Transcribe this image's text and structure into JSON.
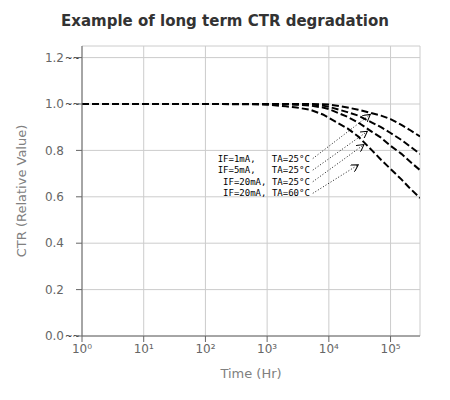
{
  "chart_data": {
    "type": "line",
    "title": "Example of long term CTR degradation",
    "xlabel": "Time (Hr)",
    "ylabel": "CTR (Relative Value)",
    "log": "x",
    "xlim": [
      1,
      300000
    ],
    "ylim": [
      0.0,
      1.25
    ],
    "xticks": [
      {
        "value": 1,
        "label": "10⁰"
      },
      {
        "value": 10,
        "label": "10¹"
      },
      {
        "value": 100,
        "label": "10²"
      },
      {
        "value": 1000,
        "label": "10³"
      },
      {
        "value": 10000,
        "label": "10⁴"
      },
      {
        "value": 100000,
        "label": "10⁵"
      }
    ],
    "yticks": [
      {
        "value": 0.0,
        "label": "0.0"
      },
      0.2,
      0.4,
      0.6,
      0.8,
      {
        "value": 1.0,
        "label": "1.0"
      },
      1.2
    ],
    "grid": true,
    "series": [
      {
        "name": "IF=1mA,   TA=25°C",
        "color": "black",
        "line_style": "dashed",
        "x": [
          1,
          100,
          500,
          1000,
          2000,
          3000,
          5000,
          8000,
          10000,
          20000,
          30000,
          50000,
          70000,
          100000,
          150000,
          200000,
          300000
        ],
        "values": [
          1.0,
          1.0,
          1.0,
          1.0,
          1.0,
          1.0,
          1.0,
          0.999,
          0.998,
          0.985,
          0.975,
          0.96,
          0.95,
          0.935,
          0.91,
          0.89,
          0.86
        ],
        "arrow": {
          "x": [
            5500,
            47000
          ],
          "y": [
            0.765,
            0.955
          ]
        }
      },
      {
        "name": "IF=5mA,   TA=25°C",
        "color": "black",
        "line_style": "dashed",
        "x": [
          1,
          100,
          500,
          1000,
          2000,
          3000,
          5000,
          8000,
          10000,
          20000,
          30000,
          50000,
          70000,
          100000,
          150000,
          200000,
          300000
        ],
        "values": [
          1.0,
          1.0,
          1.0,
          1.0,
          1.0,
          0.999,
          0.998,
          0.993,
          0.988,
          0.965,
          0.95,
          0.92,
          0.9,
          0.875,
          0.845,
          0.82,
          0.785
        ],
        "arrow": {
          "x": [
            5500,
            42000
          ],
          "y": [
            0.715,
            0.882
          ]
        }
      },
      {
        "name": "IF=20mA, TA=25°C",
        "color": "black",
        "line_style": "dashed",
        "x": [
          1,
          100,
          500,
          1000,
          2000,
          3000,
          5000,
          8000,
          10000,
          20000,
          30000,
          50000,
          70000,
          100000,
          150000,
          200000,
          300000
        ],
        "values": [
          1.0,
          1.0,
          1.0,
          1.0,
          0.999,
          0.997,
          0.993,
          0.985,
          0.978,
          0.945,
          0.92,
          0.88,
          0.855,
          0.82,
          0.785,
          0.755,
          0.715
        ],
        "arrow": {
          "x": [
            5500,
            37000
          ],
          "y": [
            0.665,
            0.825
          ]
        }
      },
      {
        "name": "IF=20mA, TA=60°C",
        "color": "black",
        "line_style": "dashed",
        "x": [
          1,
          100,
          500,
          1000,
          2000,
          3000,
          5000,
          8000,
          10000,
          20000,
          30000,
          50000,
          70000,
          100000,
          150000,
          200000,
          300000
        ],
        "values": [
          1.0,
          1.0,
          0.999,
          0.997,
          0.99,
          0.985,
          0.975,
          0.955,
          0.94,
          0.895,
          0.86,
          0.8,
          0.76,
          0.72,
          0.675,
          0.64,
          0.595
        ],
        "arrow": {
          "x": [
            5500,
            30000
          ],
          "y": [
            0.615,
            0.738
          ]
        }
      }
    ],
    "annotations": [
      {
        "text": "~~",
        "y": 0.0
      },
      {
        "text": "~~",
        "y": 1.0
      },
      {
        "text": "~~",
        "y": 1.2
      }
    ]
  }
}
